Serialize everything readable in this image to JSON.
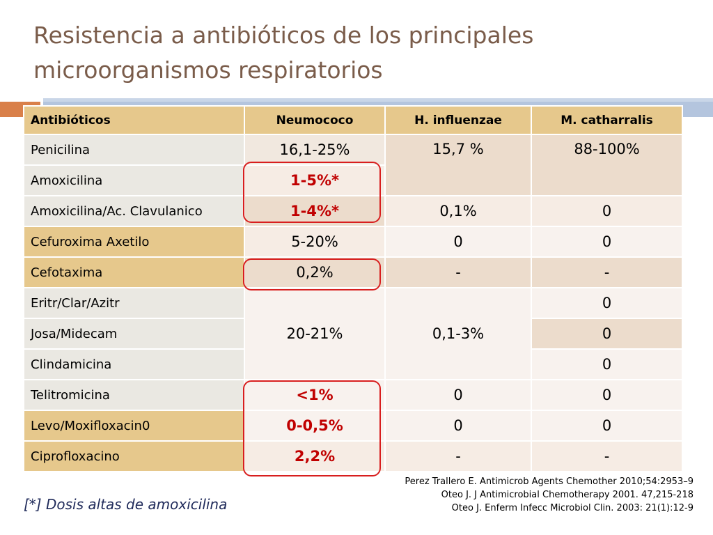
{
  "slide": {
    "title_line1": "Resistencia a antibióticos de los principales",
    "title_line2": "microorganismos respiratorios"
  },
  "table": {
    "headers": [
      "Antibióticos",
      "Neumococo",
      "H. influenzae",
      "M. catharralis"
    ],
    "rows": [
      {
        "name": "Penicilina",
        "neumococo": "16,1-25%",
        "hinfluenzae": "15,7 %",
        "mcatharralis": "88-100%"
      },
      {
        "name": "Amoxicilina",
        "neumococo": "1-5%*"
      },
      {
        "name": "Amoxicilina/Ac. Clavulanico",
        "neumococo": "1-4%*",
        "hinfluenzae": "0,1%",
        "mcatharralis": "0"
      },
      {
        "name": "Cefuroxima Axetilo",
        "neumococo": "5-20%",
        "hinfluenzae": "0",
        "mcatharralis": "0"
      },
      {
        "name": "Cefotaxima",
        "neumococo": "0,2%",
        "hinfluenzae": "-",
        "mcatharralis": "-"
      },
      {
        "name": "Eritr/Clar/Azitr",
        "neumococo": "20-21%",
        "hinfluenzae": "0,1-3%",
        "mcatharralis": "0"
      },
      {
        "name": "Josa/Midecam",
        "mcatharralis": "0"
      },
      {
        "name": "Clindamicina",
        "mcatharralis": "0"
      },
      {
        "name": "Telitromicina",
        "neumococo": "<1%",
        "hinfluenzae": "0",
        "mcatharralis": "0"
      },
      {
        "name": "Levo/Moxifloxacin0",
        "neumococo": "0-0,5%",
        "hinfluenzae": "0",
        "mcatharralis": "0"
      },
      {
        "name": "Ciprofloxacino",
        "neumococo": "2,2%",
        "hinfluenzae": "-",
        "mcatharralis": "-"
      }
    ]
  },
  "references": [
    "Perez Trallero E. Antimicrob Agents Chemother 2010;54:2953–9",
    "Oteo J.  J Antimicrobial Chemotherapy 2001. 47,215-218",
    "Oteo J. Enferm Infecc Microbiol Clin. 2003: 21(1):12-9"
  ],
  "footnote": "[*]  Dosis altas de amoxicilina",
  "colors": {
    "title": "#7a5c4a",
    "header_bg": "#e6c88c",
    "highlight": "#d81e1e",
    "accent_orange": "#d9804a",
    "accent_blue": "#b4c5de"
  }
}
